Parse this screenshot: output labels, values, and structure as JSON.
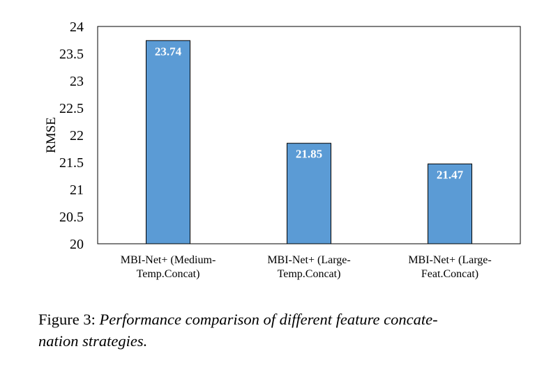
{
  "chart_data": {
    "type": "bar",
    "categories": [
      [
        "MBI-Net+ (Medium-",
        "Temp.Concat)"
      ],
      [
        "MBI-Net+ (Large-",
        "Temp.Concat)"
      ],
      [
        "MBI-Net+ (Large-",
        "Feat.Concat)"
      ]
    ],
    "values": [
      23.74,
      21.85,
      21.47
    ],
    "data_labels": [
      "23.74",
      "21.85",
      "21.47"
    ],
    "title": "",
    "xlabel": "",
    "ylabel": "RMSE",
    "ylim": [
      20,
      24
    ],
    "yticks": [
      20,
      20.5,
      21,
      21.5,
      22,
      22.5,
      23,
      23.5,
      24
    ],
    "ytick_labels": [
      "20",
      "20.5",
      "21",
      "21.5",
      "22",
      "22.5",
      "23",
      "23.5",
      "24"
    ],
    "bar_color": "#5b9bd5",
    "bar_edge_color": "#000000",
    "data_label_color": "#ffffff",
    "grid": false,
    "legend": "none"
  },
  "caption": {
    "prefix": "Figure 3: ",
    "line1": "Performance comparison of different feature concate-",
    "line2": "nation strategies."
  }
}
